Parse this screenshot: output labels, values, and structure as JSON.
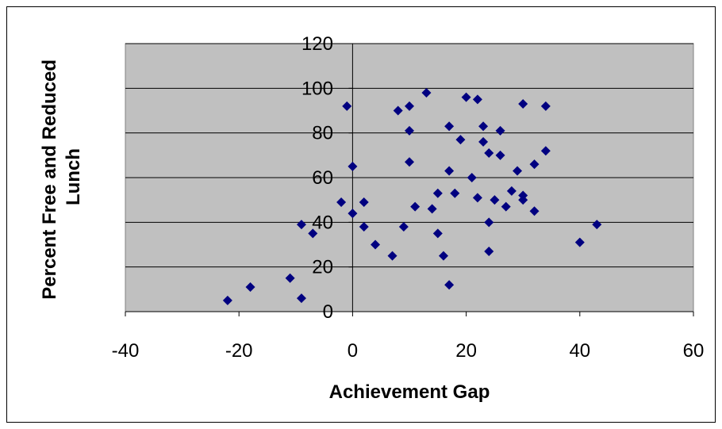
{
  "chart_data": {
    "type": "scatter",
    "xlabel": "Achievement Gap",
    "ylabel_lines": [
      "Percent  Free and Reduced",
      "Lunch"
    ],
    "xlim": [
      -40,
      60
    ],
    "ylim": [
      0,
      120
    ],
    "x_ticks": [
      "-40",
      "-20",
      "0",
      "20",
      "40",
      "60"
    ],
    "y_ticks": [
      "0",
      "20",
      "40",
      "60",
      "80",
      "100",
      "120"
    ],
    "grid": "horizontal",
    "legend": "none",
    "colors": {
      "plot_bg": "#c0c0c0",
      "marker": "#000080",
      "grid": "#000000"
    },
    "marker": "diamond",
    "points": [
      {
        "x": -22,
        "y": 5
      },
      {
        "x": -18,
        "y": 11
      },
      {
        "x": -11,
        "y": 15
      },
      {
        "x": -9,
        "y": 6
      },
      {
        "x": -9,
        "y": 39
      },
      {
        "x": -7,
        "y": 35
      },
      {
        "x": -2,
        "y": 49
      },
      {
        "x": -1,
        "y": 92
      },
      {
        "x": 0,
        "y": 65
      },
      {
        "x": 0,
        "y": 44
      },
      {
        "x": 2,
        "y": 49
      },
      {
        "x": 2,
        "y": 38
      },
      {
        "x": 4,
        "y": 30
      },
      {
        "x": 7,
        "y": 25
      },
      {
        "x": 8,
        "y": 90
      },
      {
        "x": 9,
        "y": 38
      },
      {
        "x": 10,
        "y": 92
      },
      {
        "x": 10,
        "y": 81
      },
      {
        "x": 10,
        "y": 67
      },
      {
        "x": 11,
        "y": 47
      },
      {
        "x": 13,
        "y": 98
      },
      {
        "x": 14,
        "y": 46
      },
      {
        "x": 15,
        "y": 53
      },
      {
        "x": 15,
        "y": 35
      },
      {
        "x": 16,
        "y": 25
      },
      {
        "x": 17,
        "y": 83
      },
      {
        "x": 17,
        "y": 63
      },
      {
        "x": 17,
        "y": 12
      },
      {
        "x": 18,
        "y": 53
      },
      {
        "x": 19,
        "y": 77
      },
      {
        "x": 20,
        "y": 96
      },
      {
        "x": 21,
        "y": 60
      },
      {
        "x": 22,
        "y": 95
      },
      {
        "x": 22,
        "y": 51
      },
      {
        "x": 23,
        "y": 83
      },
      {
        "x": 23,
        "y": 76
      },
      {
        "x": 24,
        "y": 71
      },
      {
        "x": 24,
        "y": 40
      },
      {
        "x": 24,
        "y": 27
      },
      {
        "x": 25,
        "y": 50
      },
      {
        "x": 26,
        "y": 81
      },
      {
        "x": 26,
        "y": 70
      },
      {
        "x": 27,
        "y": 47
      },
      {
        "x": 28,
        "y": 54
      },
      {
        "x": 29,
        "y": 63
      },
      {
        "x": 30,
        "y": 93
      },
      {
        "x": 30,
        "y": 52
      },
      {
        "x": 30,
        "y": 50
      },
      {
        "x": 32,
        "y": 66
      },
      {
        "x": 32,
        "y": 45
      },
      {
        "x": 34,
        "y": 92
      },
      {
        "x": 34,
        "y": 72
      },
      {
        "x": 40,
        "y": 31
      },
      {
        "x": 43,
        "y": 39
      }
    ]
  }
}
